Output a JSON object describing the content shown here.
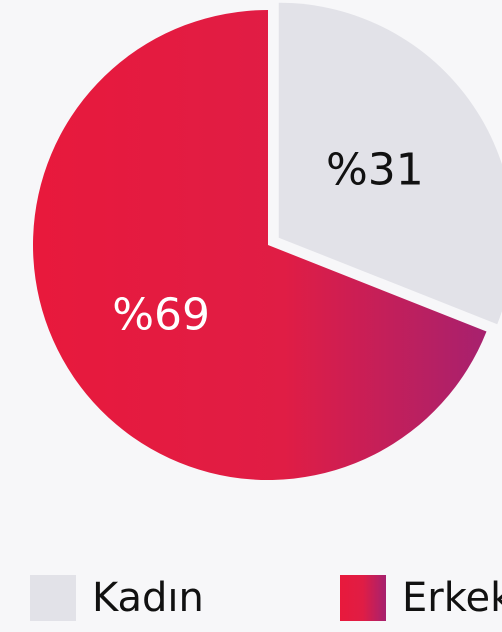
{
  "chart_data": {
    "type": "pie",
    "categories": [
      "Kadın",
      "Erkek"
    ],
    "values": [
      31,
      69
    ],
    "value_labels": [
      "%31",
      "%69"
    ],
    "colors": [
      "#e2e2e8",
      "#e8193c"
    ],
    "legend": "bottom"
  }
}
